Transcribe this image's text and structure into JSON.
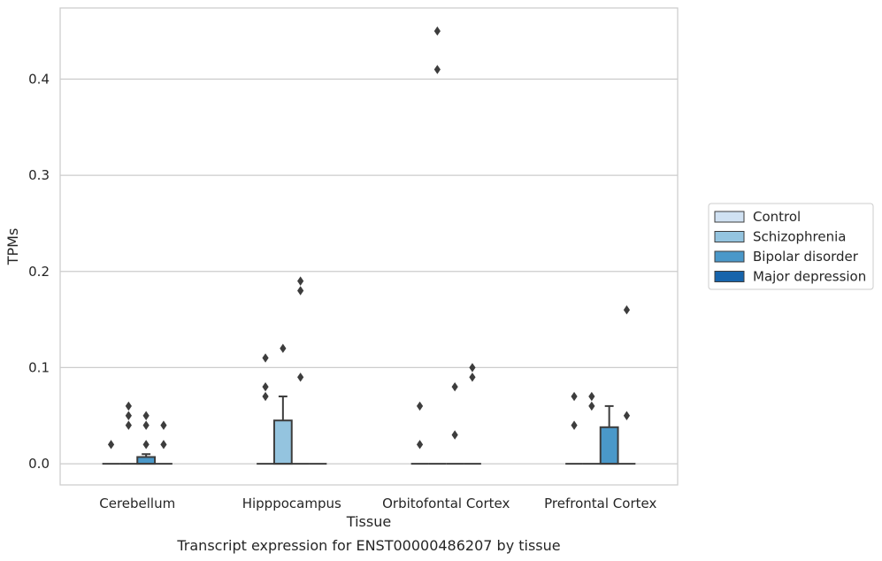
{
  "chart_data": {
    "type": "box",
    "title": "",
    "caption": "Transcript expression for ENST00000486207 by tissue",
    "xlabel": "Tissue",
    "ylabel": "TPMs",
    "ylim": [
      -0.022,
      0.474
    ],
    "yticks": [
      "0.0",
      "0.1",
      "0.2",
      "0.3",
      "0.4"
    ],
    "ytick_values": [
      0.0,
      0.1,
      0.2,
      0.3,
      0.4
    ],
    "grid": "horizontal",
    "legend_position": "right",
    "categories": [
      "Cerebellum",
      "Hipppocampus",
      "Orbitofontal Cortex",
      "Prefrontal Cortex"
    ],
    "series": [
      {
        "name": "Control",
        "color": "#d0e1f2"
      },
      {
        "name": "Schizophrenia",
        "color": "#94c4df"
      },
      {
        "name": "Bipolar disorder",
        "color": "#4a98c9"
      },
      {
        "name": "Major depression",
        "color": "#1764ab"
      }
    ],
    "boxes": [
      {
        "category": 0,
        "series": 0,
        "q1": 0,
        "median": 0,
        "q3": 0,
        "whisker_low": 0,
        "whisker_high": 0,
        "outliers": [
          0.02
        ]
      },
      {
        "category": 0,
        "series": 1,
        "q1": 0,
        "median": 0,
        "q3": 0,
        "whisker_low": 0,
        "whisker_high": 0,
        "outliers": [
          0.04,
          0.05,
          0.06
        ]
      },
      {
        "category": 0,
        "series": 2,
        "q1": 0,
        "median": 0,
        "q3": 0.007,
        "whisker_low": 0,
        "whisker_high": 0.01,
        "outliers": [
          0.02,
          0.04,
          0.05
        ]
      },
      {
        "category": 0,
        "series": 3,
        "q1": 0,
        "median": 0,
        "q3": 0,
        "whisker_low": 0,
        "whisker_high": 0,
        "outliers": [
          0.02,
          0.04
        ]
      },
      {
        "category": 1,
        "series": 0,
        "q1": 0,
        "median": 0,
        "q3": 0,
        "whisker_low": 0,
        "whisker_high": 0,
        "outliers": [
          0.07,
          0.08,
          0.11
        ]
      },
      {
        "category": 1,
        "series": 1,
        "q1": 0,
        "median": 0,
        "q3": 0.045,
        "whisker_low": 0,
        "whisker_high": 0.07,
        "outliers": [
          0.12
        ]
      },
      {
        "category": 1,
        "series": 2,
        "q1": 0,
        "median": 0,
        "q3": 0,
        "whisker_low": 0,
        "whisker_high": 0,
        "outliers": [
          0.09,
          0.18,
          0.19
        ]
      },
      {
        "category": 1,
        "series": 3,
        "q1": 0,
        "median": 0,
        "q3": 0,
        "whisker_low": 0,
        "whisker_high": 0,
        "outliers": []
      },
      {
        "category": 2,
        "series": 0,
        "q1": 0,
        "median": 0,
        "q3": 0,
        "whisker_low": 0,
        "whisker_high": 0,
        "outliers": [
          0.02,
          0.06
        ]
      },
      {
        "category": 2,
        "series": 1,
        "q1": 0,
        "median": 0,
        "q3": 0,
        "whisker_low": 0,
        "whisker_high": 0,
        "outliers": [
          0.41,
          0.45
        ]
      },
      {
        "category": 2,
        "series": 2,
        "q1": 0,
        "median": 0,
        "q3": 0,
        "whisker_low": 0,
        "whisker_high": 0,
        "outliers": [
          0.03,
          0.08
        ]
      },
      {
        "category": 2,
        "series": 3,
        "q1": 0,
        "median": 0,
        "q3": 0,
        "whisker_low": 0,
        "whisker_high": 0,
        "outliers": [
          0.09,
          0.1
        ]
      },
      {
        "category": 3,
        "series": 0,
        "q1": 0,
        "median": 0,
        "q3": 0,
        "whisker_low": 0,
        "whisker_high": 0,
        "outliers": [
          0.04,
          0.07
        ]
      },
      {
        "category": 3,
        "series": 1,
        "q1": 0,
        "median": 0,
        "q3": 0,
        "whisker_low": 0,
        "whisker_high": 0,
        "outliers": [
          0.06,
          0.07
        ]
      },
      {
        "category": 3,
        "series": 2,
        "q1": 0,
        "median": 0,
        "q3": 0.038,
        "whisker_low": 0,
        "whisker_high": 0.06,
        "outliers": []
      },
      {
        "category": 3,
        "series": 3,
        "q1": 0,
        "median": 0,
        "q3": 0,
        "whisker_low": 0,
        "whisker_high": 0,
        "outliers": [
          0.05,
          0.16
        ]
      }
    ]
  }
}
